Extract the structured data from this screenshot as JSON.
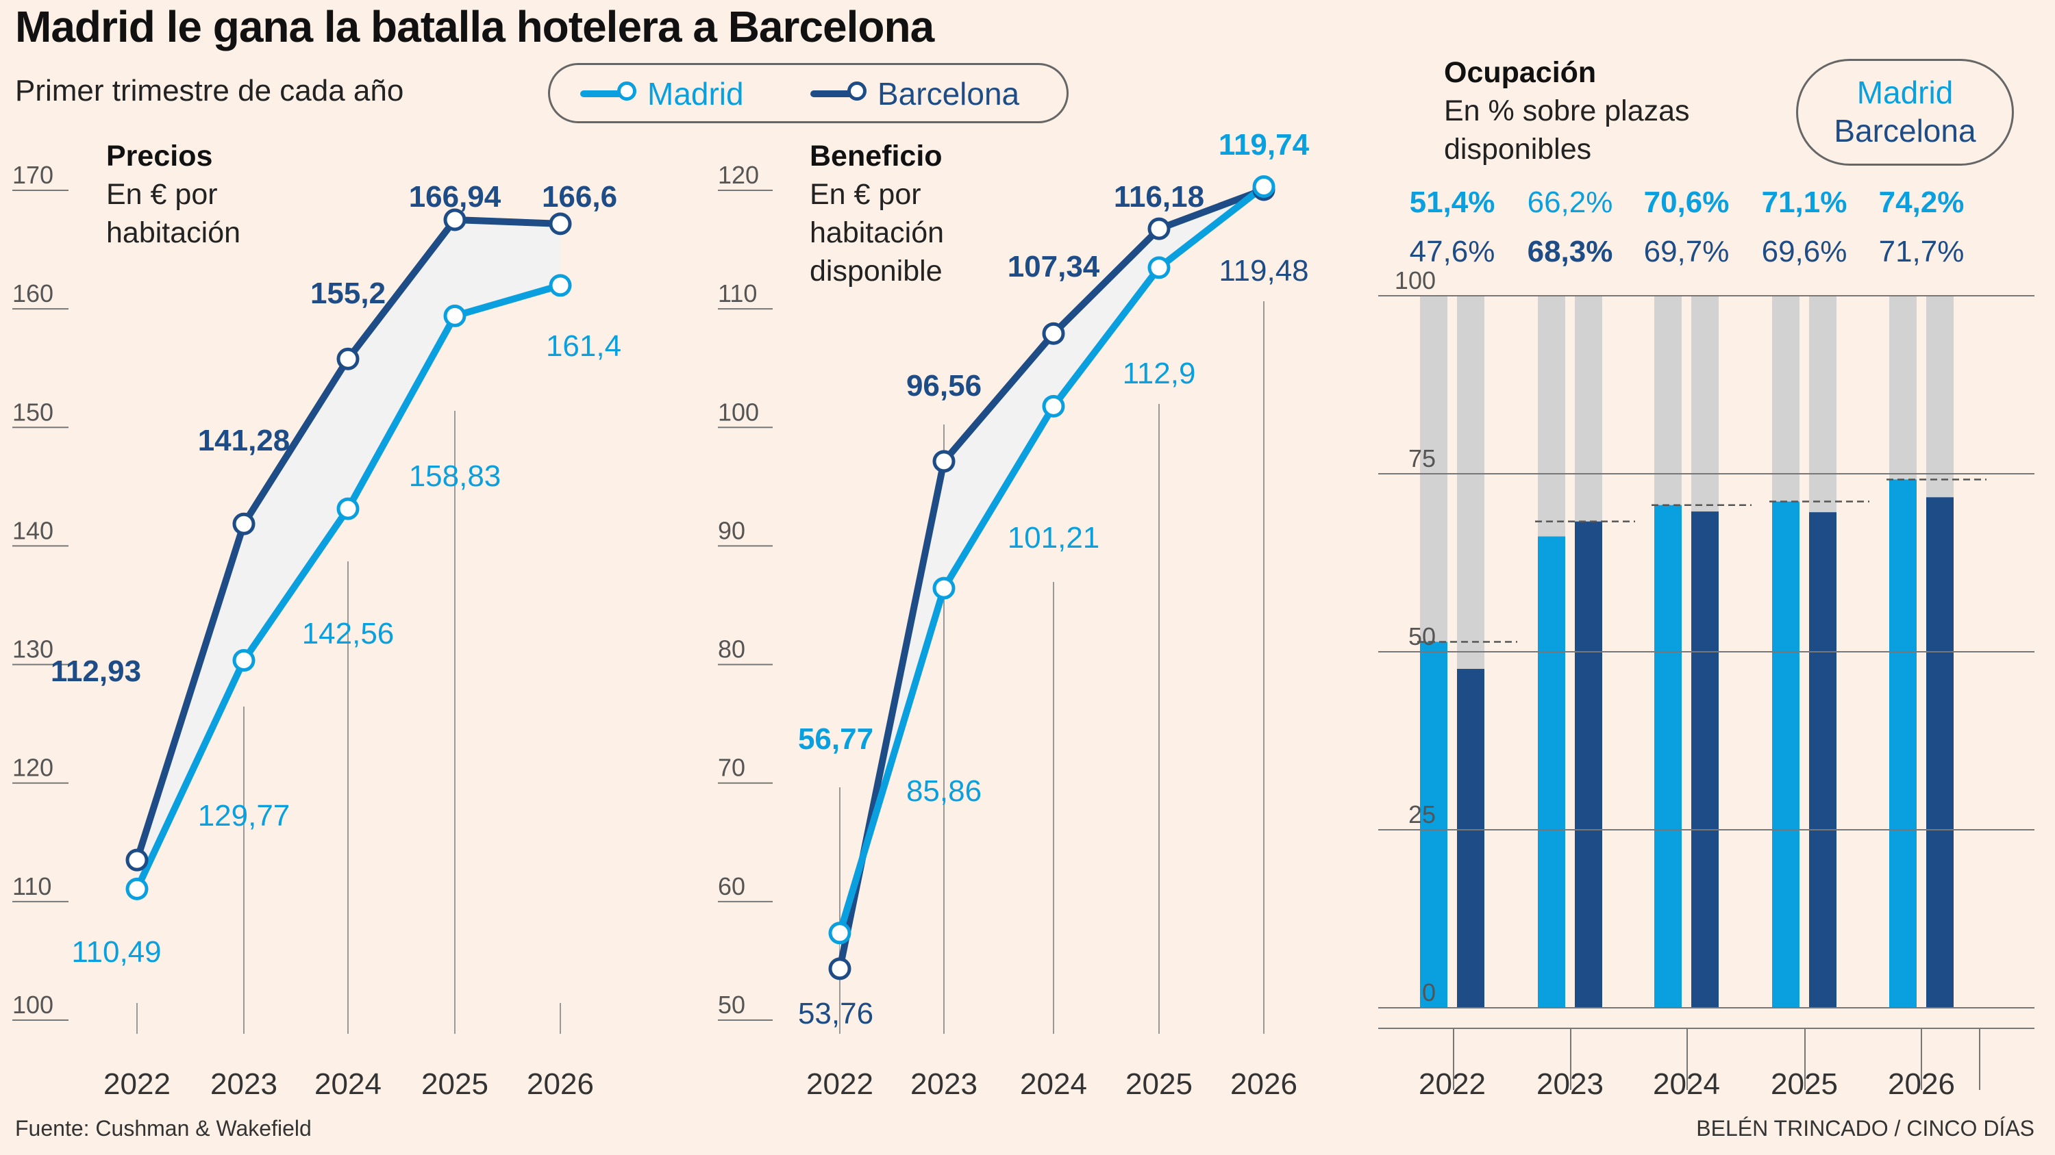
{
  "header": {
    "title": "Madrid le gana la batalla hotelera a Barcelona",
    "subtitle": "Primer trimestre de cada año"
  },
  "legend": {
    "madrid": "Madrid",
    "barcelona": "Barcelona"
  },
  "colors": {
    "madrid": "#0aa0e0",
    "barcelona": "#1d4c86",
    "gray_bar": "#d2d2d2",
    "grid": "#888888"
  },
  "panels": {
    "precios": {
      "title": "Precios",
      "subtitle": "En € por habitación"
    },
    "beneficio": {
      "title": "Beneficio",
      "subtitle": "En € por habitación disponible"
    },
    "ocupacion": {
      "title": "Ocupación",
      "subtitle": "En % sobre plazas disponibles",
      "legend_madrid": "Madrid",
      "legend_barcelona": "Barcelona"
    }
  },
  "chart_data": [
    {
      "type": "line",
      "title": "Precios",
      "x": [
        "2022",
        "2023",
        "2024",
        "2025",
        "2026"
      ],
      "ylim": [
        100,
        170
      ],
      "yticks": [
        "100",
        "110",
        "120",
        "130",
        "140",
        "150",
        "160",
        "170"
      ],
      "series": [
        {
          "name": "Madrid",
          "values": [
            110.49,
            129.77,
            142.56,
            158.83,
            161.4
          ],
          "labels": [
            "110,49",
            "129,77",
            "142,56",
            "158,83",
            "161,4"
          ]
        },
        {
          "name": "Barcelona",
          "values": [
            112.93,
            141.28,
            155.2,
            166.94,
            166.6
          ],
          "labels": [
            "112,93",
            "141,28",
            "155,2",
            "166,94",
            "166,6"
          ]
        }
      ]
    },
    {
      "type": "line",
      "title": "Beneficio",
      "x": [
        "2022",
        "2023",
        "2024",
        "2025",
        "2026"
      ],
      "ylim": [
        50,
        120
      ],
      "yticks": [
        "50",
        "60",
        "70",
        "80",
        "90",
        "100",
        "110",
        "120"
      ],
      "series": [
        {
          "name": "Madrid",
          "values": [
            56.77,
            85.86,
            101.21,
            112.9,
            119.74
          ],
          "labels": [
            "56,77",
            "85,86",
            "101,21",
            "112,9",
            "119,74"
          ]
        },
        {
          "name": "Barcelona",
          "values": [
            53.76,
            96.56,
            107.34,
            116.18,
            119.48
          ],
          "labels": [
            "53,76",
            "96,56",
            "107,34",
            "116,18",
            "119,48"
          ]
        }
      ]
    },
    {
      "type": "bar",
      "title": "Ocupación",
      "categories": [
        "2022",
        "2023",
        "2024",
        "2025",
        "2026"
      ],
      "ylim": [
        0,
        100
      ],
      "yticks": [
        "0",
        "25",
        "50",
        "75",
        "100"
      ],
      "series": [
        {
          "name": "Madrid",
          "values": [
            51.4,
            66.2,
            70.6,
            71.1,
            74.2
          ],
          "labels": [
            "51,4%",
            "66,2%",
            "70,6%",
            "71,1%",
            "74,2%"
          ]
        },
        {
          "name": "Barcelona",
          "values": [
            47.6,
            68.3,
            69.7,
            69.6,
            71.7
          ],
          "labels": [
            "47,6%",
            "68,3%",
            "69,7%",
            "69,6%",
            "71,7%"
          ]
        }
      ]
    }
  ],
  "footer": {
    "source": "Fuente: Cushman & Wakefield",
    "credit": "BELÉN TRINCADO / CINCO DÍAS"
  }
}
